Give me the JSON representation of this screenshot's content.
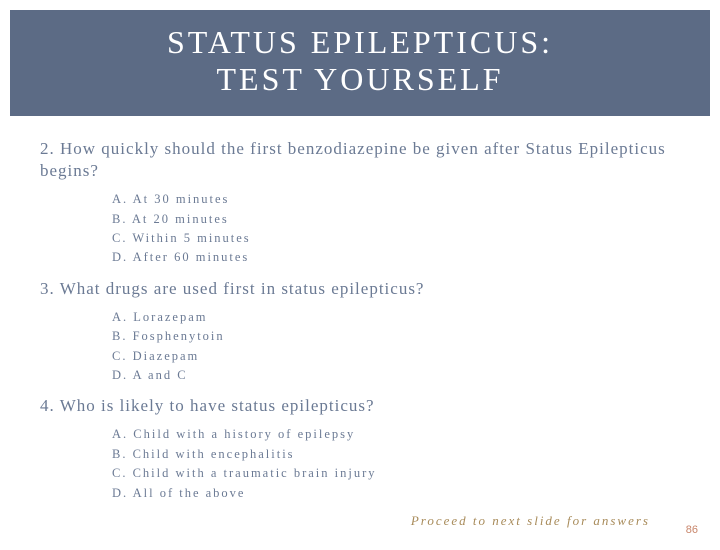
{
  "header": {
    "line1": "STATUS EPILEPTICUS:",
    "line2": "TEST YOURSELF",
    "background_color": "#5c6b85",
    "text_color": "#ffffff",
    "fontsize": 32
  },
  "questions": [
    {
      "number": "2.",
      "text": "How quickly should the first benzodiazepine be given after Status Epilepticus begins?",
      "options": [
        {
          "label": "A.",
          "text": "At 30 minutes"
        },
        {
          "label": "B.",
          "text": "At 20 minutes"
        },
        {
          "label": "C.",
          "text": "Within 5 minutes"
        },
        {
          "label": "D.",
          "text": "After 60 minutes"
        }
      ]
    },
    {
      "number": "3.",
      "text": "What drugs are used first in status epilepticus?",
      "options": [
        {
          "label": "A.",
          "text": "Lorazepam"
        },
        {
          "label": "B.",
          "text": "Fosphenytoin"
        },
        {
          "label": "C.",
          "text": "Diazepam"
        },
        {
          "label": "D.",
          "text": "A and C"
        }
      ]
    },
    {
      "number": "4.",
      "text": "Who is likely to have status epilepticus?",
      "options": [
        {
          "label": "A.",
          "text": "Child with a history of epilepsy"
        },
        {
          "label": "B.",
          "text": "Child with encephalitis"
        },
        {
          "label": "C.",
          "text": "Child with a traumatic brain injury"
        },
        {
          "label": "D.",
          "text": "All of the above"
        }
      ]
    }
  ],
  "proceed_text": "Proceed to next slide for answers",
  "page_number": "86",
  "colors": {
    "question_text": "#6b7a94",
    "option_text": "#6b7a94",
    "proceed_text": "#a88b5a",
    "page_num": "#c8856a",
    "background": "#ffffff"
  }
}
